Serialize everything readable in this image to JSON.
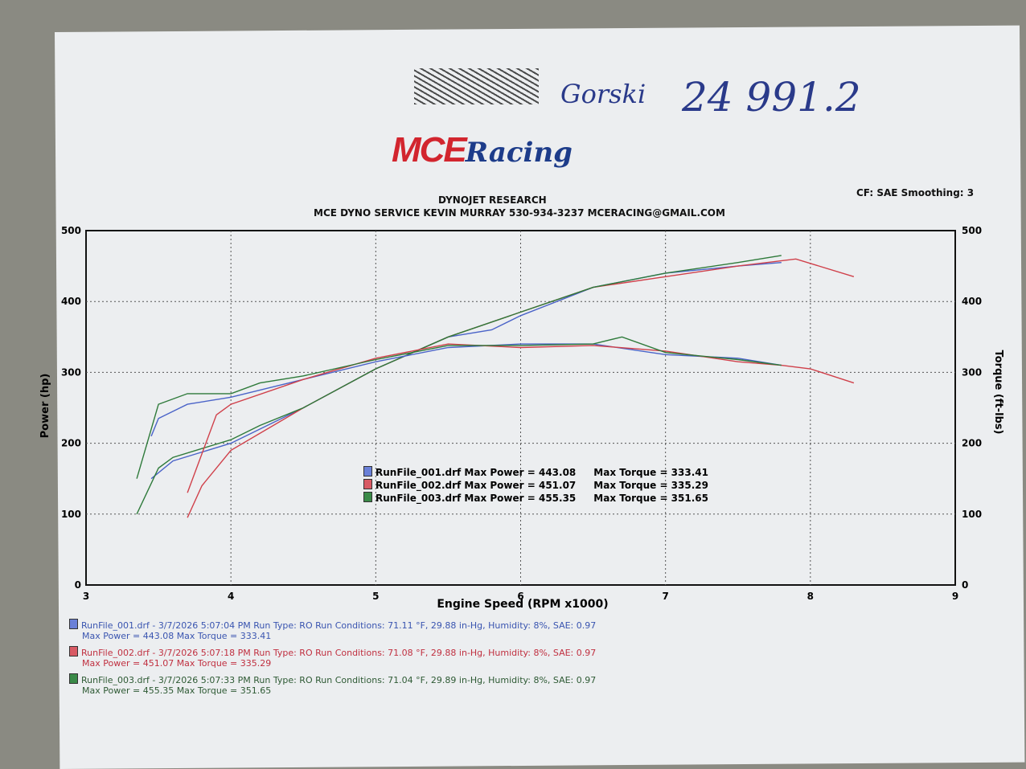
{
  "handwriting": {
    "name": "Gorski",
    "note": "24 991.2"
  },
  "logo": {
    "text_main": "MCE",
    "text_script": "Racing"
  },
  "header": {
    "line1": "DYNOJET RESEARCH",
    "line2": "MCE DYNO SERVICE KEVIN MURRAY 530-934-3237 MCERACING@GMAIL.COM",
    "cf": "CF: SAE  Smoothing: 3"
  },
  "chart_data": {
    "type": "line",
    "xlabel": "Engine Speed (RPM x1000)",
    "ylabel": "Power (hp)",
    "y2label": "Torque (ft-lbs)",
    "xlim": [
      3,
      9
    ],
    "ylim": [
      0,
      500
    ],
    "y2lim": [
      0,
      500
    ],
    "xticks": [
      "3",
      "4",
      "5",
      "6",
      "7",
      "8",
      "9"
    ],
    "yticks": [
      "0",
      "100",
      "200",
      "300",
      "400",
      "500"
    ],
    "y2ticks": [
      "0",
      "100",
      "200",
      "300",
      "400",
      "500"
    ],
    "grid": true,
    "colors": {
      "RunFile_001": "#4a63c8",
      "RunFile_002": "#d0404a",
      "RunFile_003": "#2e7a3a"
    },
    "series": [
      {
        "name": "RunFile_001.drf",
        "kind": "power",
        "color": "#4a63c8",
        "x": [
          3.45,
          3.6,
          4.0,
          4.5,
          5.0,
          5.5,
          5.8,
          6.0,
          6.5,
          7.0,
          7.5,
          7.8
        ],
        "y": [
          150,
          175,
          200,
          250,
          305,
          350,
          360,
          380,
          420,
          440,
          450,
          455
        ]
      },
      {
        "name": "RunFile_002.drf",
        "kind": "power",
        "color": "#d0404a",
        "x": [
          3.7,
          3.8,
          4.0,
          4.5,
          5.0,
          5.5,
          6.0,
          6.5,
          7.0,
          7.5,
          7.9,
          8.3
        ],
        "y": [
          95,
          140,
          190,
          250,
          305,
          350,
          385,
          420,
          435,
          450,
          460,
          435
        ]
      },
      {
        "name": "RunFile_003.drf",
        "kind": "power",
        "color": "#2e7a3a",
        "x": [
          3.35,
          3.5,
          3.6,
          4.0,
          4.2,
          4.5,
          5.0,
          5.5,
          6.0,
          6.5,
          7.0,
          7.5,
          7.8
        ],
        "y": [
          100,
          165,
          180,
          205,
          225,
          250,
          305,
          350,
          385,
          420,
          440,
          455,
          465
        ]
      },
      {
        "name": "RunFile_001.drf",
        "kind": "torque",
        "color": "#4a63c8",
        "x": [
          3.45,
          3.5,
          3.7,
          4.0,
          4.5,
          5.0,
          5.5,
          6.0,
          6.5,
          7.0,
          7.5,
          7.8
        ],
        "y": [
          210,
          235,
          255,
          265,
          290,
          315,
          335,
          340,
          340,
          325,
          320,
          310
        ]
      },
      {
        "name": "RunFile_002.drf",
        "kind": "torque",
        "color": "#d0404a",
        "x": [
          3.7,
          3.9,
          4.0,
          4.5,
          5.0,
          5.5,
          6.0,
          6.5,
          7.0,
          7.5,
          7.8,
          8.0,
          8.3
        ],
        "y": [
          130,
          240,
          255,
          290,
          320,
          340,
          335,
          338,
          330,
          315,
          310,
          305,
          285
        ]
      },
      {
        "name": "RunFile_003.drf",
        "kind": "torque",
        "color": "#2e7a3a",
        "x": [
          3.35,
          3.5,
          3.7,
          4.0,
          4.2,
          4.5,
          5.0,
          5.5,
          6.0,
          6.5,
          6.7,
          7.0,
          7.5,
          7.8
        ],
        "y": [
          150,
          255,
          270,
          270,
          285,
          295,
          318,
          338,
          338,
          340,
          350,
          328,
          318,
          310
        ]
      }
    ],
    "legend": [
      {
        "file": "RunFile_001.drf",
        "power": "Max Power = 443.08",
        "torque": "Max Torque = 333.41"
      },
      {
        "file": "RunFile_002.drf",
        "power": "Max Power = 451.07",
        "torque": "Max Torque = 335.29"
      },
      {
        "file": "RunFile_003.drf",
        "power": "Max Power = 455.35",
        "torque": "Max Torque = 351.65"
      }
    ]
  },
  "runs": [
    {
      "line1": "RunFile_001.drf - 3/7/2026 5:07:04 PM  Run Type: RO  Run Conditions: 71.11 °F, 29.88 in-Hg,  Humidity:  8%, SAE: 0.97",
      "line2": "Max Power = 443.08  Max Torque = 333.41",
      "color": "#3a55b0"
    },
    {
      "line1": "RunFile_002.drf - 3/7/2026 5:07:18 PM  Run Type: RO  Run Conditions: 71.08 °F, 29.88 in-Hg,  Humidity:  8%, SAE: 0.97",
      "line2": "Max Power = 451.07  Max Torque = 335.29",
      "color": "#c03040"
    },
    {
      "line1": "RunFile_003.drf - 3/7/2026 5:07:33 PM  Run Type: RO  Run Conditions: 71.04 °F, 29.89 in-Hg,  Humidity:  8%, SAE: 0.97",
      "line2": "Max Power = 455.35  Max Torque = 351.65",
      "color": "#2e5a34"
    }
  ]
}
